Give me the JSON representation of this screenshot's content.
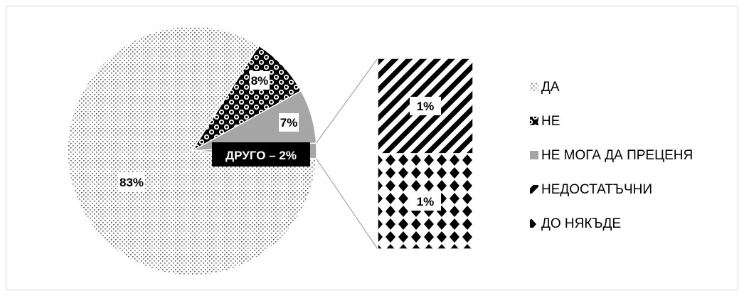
{
  "chart_data": {
    "type": "pie",
    "subtype": "bar-of-pie",
    "title": "",
    "pie_slices": [
      {
        "name": "ДА",
        "value": 83,
        "label": "83%",
        "pattern": "dots-small"
      },
      {
        "name": "НЕ",
        "value": 8,
        "label": "8%",
        "pattern": "checker-balls"
      },
      {
        "name": "НЕ МОГА ДА ПРЕЦЕНЯ",
        "value": 7,
        "label": "7%",
        "pattern": "solid-gray"
      },
      {
        "name": "ДРУГО",
        "value": 2,
        "label": "ДРУГО – 2%",
        "pattern": "solid-gray",
        "exploded_to_bar": true
      }
    ],
    "bar_segments": [
      {
        "name": "НЕДОСТАТЪЧНИ",
        "value": 1,
        "label": "1%",
        "pattern": "diagonal-stripes"
      },
      {
        "name": "ДО НЯКЪДЕ",
        "value": 1,
        "label": "1%",
        "pattern": "diamonds"
      }
    ],
    "legend": {
      "placement": "right",
      "entries": [
        "ДА",
        "НЕ",
        "НЕ МОГА ДА ПРЕЦЕНЯ",
        "НЕДОСТАТЪЧНИ",
        "ДО НЯКЪДЕ"
      ]
    },
    "colors": {
      "gray": "#a6a6a6",
      "black": "#000000",
      "border": "#d9d9d9"
    }
  }
}
